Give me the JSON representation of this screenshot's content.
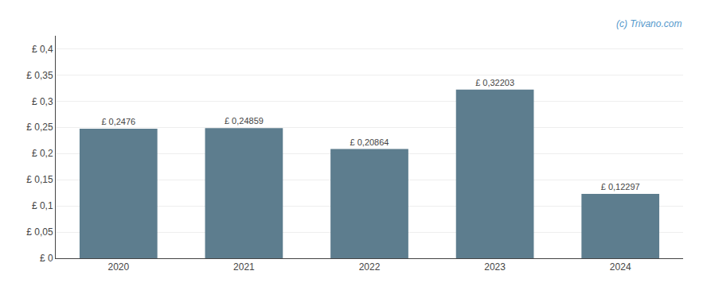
{
  "chart_data": {
    "type": "bar",
    "categories": [
      "2020",
      "2021",
      "2022",
      "2023",
      "2024"
    ],
    "values": [
      0.2476,
      0.24859,
      0.20864,
      0.32203,
      0.12297
    ],
    "value_labels": [
      "£ 0,2476",
      "£ 0,24859",
      "£ 0,20864",
      "£ 0,32203",
      "£ 0,12297"
    ],
    "data_labels": true,
    "color": "#5d7d8e",
    "ylim": [
      0,
      0.425
    ],
    "yticks": [
      {
        "value": 0,
        "label": "£ 0"
      },
      {
        "value": 0.05,
        "label": "£ 0,05"
      },
      {
        "value": 0.1,
        "label": "£ 0,1"
      },
      {
        "value": 0.15,
        "label": "£ 0,15"
      },
      {
        "value": 0.2,
        "label": "£ 0,2"
      },
      {
        "value": 0.25,
        "label": "£ 0,25"
      },
      {
        "value": 0.3,
        "label": "£ 0,3"
      },
      {
        "value": 0.35,
        "label": "£ 0,35"
      },
      {
        "value": 0.4,
        "label": "£ 0,4"
      }
    ],
    "grid": true,
    "annotations": [
      "(c) Trivano.com"
    ]
  }
}
